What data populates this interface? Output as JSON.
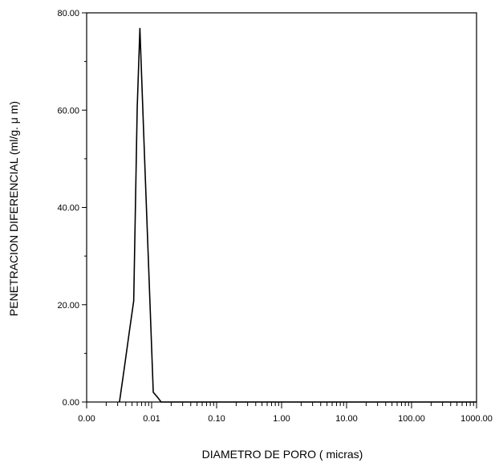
{
  "chart_data": {
    "type": "line",
    "title": "",
    "xlabel": "DIAMETRO DE PORO ( micras)",
    "ylabel": "PENETRACION DIFERENCIAL (ml/g. μ m)",
    "x_scale": "log",
    "xlim": [
      0.001,
      1000
    ],
    "ylim": [
      0,
      80
    ],
    "x_tick_values": [
      0.001,
      0.01,
      0.1,
      1,
      10,
      100,
      1000
    ],
    "x_tick_labels": [
      "0.00",
      "0.01",
      "0.10",
      "1.00",
      "10.00",
      "100.00",
      "1000.00"
    ],
    "y_tick_values": [
      0,
      20,
      40,
      60,
      80
    ],
    "y_tick_labels": [
      "0.00",
      "20.00",
      "40.00",
      "60.00",
      "80.00"
    ],
    "grid": false,
    "legend": "none",
    "series": [
      {
        "x": [
          0.0032,
          0.0038,
          0.0046,
          0.0053,
          0.006,
          0.0066,
          0.0078,
          0.0091,
          0.0106,
          0.0123,
          0.014,
          1000
        ],
        "y": [
          0.0,
          7.0,
          15.0,
          20.8,
          60.5,
          76.8,
          50.0,
          26.0,
          2.0,
          1.0,
          0.0,
          0.0
        ]
      }
    ],
    "line_color": "#000000"
  }
}
